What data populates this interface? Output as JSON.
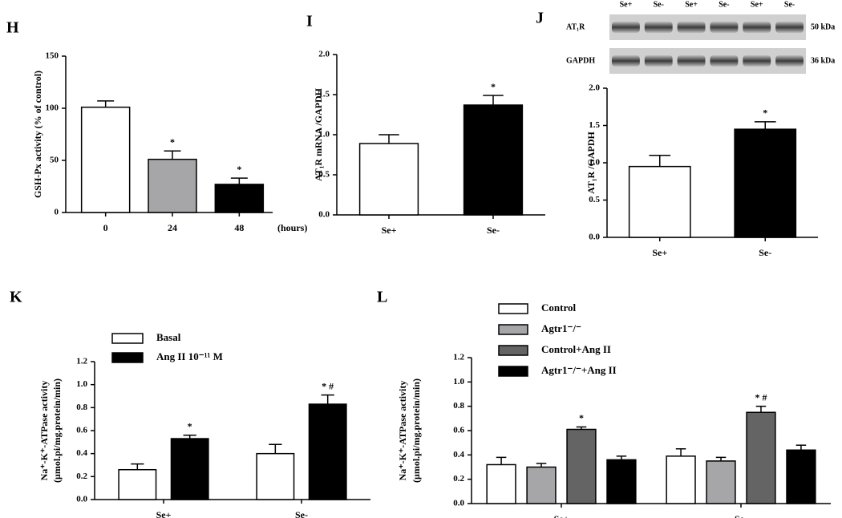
{
  "chart_data": [
    {
      "type": "bar",
      "panel": "H",
      "ylabel": "GSH-Px activity (% of control)",
      "xlabel": "(hours)",
      "categories": [
        "0",
        "24",
        "48"
      ],
      "values": [
        101,
        51,
        27
      ],
      "error": [
        6,
        8,
        6
      ],
      "colors": [
        "#ffffff",
        "#a6a6a8",
        "#000000"
      ],
      "annotations": [
        null,
        "*",
        "*"
      ],
      "ylim": [
        0,
        150
      ],
      "yticks": [
        0,
        50,
        100,
        150
      ]
    },
    {
      "type": "bar",
      "panel": "I",
      "ylabel": "AT₁R mRNA /GAPDH",
      "categories": [
        "Se+",
        "Se-"
      ],
      "values": [
        0.89,
        1.37
      ],
      "error": [
        0.11,
        0.12
      ],
      "colors": [
        "#ffffff",
        "#000000"
      ],
      "annotations": [
        null,
        "*"
      ],
      "ylim": [
        0,
        2
      ],
      "yticks": [
        {
          "value": 0,
          "label": "0.0"
        },
        {
          "value": 0.5,
          "label": "0.5"
        },
        {
          "value": 1,
          "label": "1.0"
        },
        {
          "value": 1.5,
          "label": "1.5"
        },
        {
          "value": 2,
          "label": "2.0"
        }
      ]
    },
    {
      "type": "bar",
      "panel": "J",
      "ylabel": "AT₁R /GAPDH",
      "blot": {
        "lanes": [
          "Se+",
          "Se-",
          "Se+",
          "Se-",
          "Se+",
          "Se-"
        ],
        "rows": [
          {
            "label": "AT₁R",
            "size": "50 kDa"
          },
          {
            "label": "GAPDH",
            "size": "36 kDa"
          }
        ]
      },
      "categories": [
        "Se+",
        "Se-"
      ],
      "values": [
        0.95,
        1.45
      ],
      "error": [
        0.15,
        0.1
      ],
      "colors": [
        "#ffffff",
        "#000000"
      ],
      "annotations": [
        null,
        "*"
      ],
      "ylim": [
        0,
        2
      ],
      "yticks": [
        {
          "value": 0,
          "label": "0.0"
        },
        {
          "value": 0.5,
          "label": "0.5"
        },
        {
          "value": 1,
          "label": "1.0"
        },
        {
          "value": 1.5,
          "label": "1.5"
        },
        {
          "value": 2,
          "label": "2.0"
        }
      ]
    },
    {
      "type": "grouped-bar",
      "panel": "K",
      "ylabel": [
        "Na⁺-K⁺-ATPase activity",
        "(μmol.pi/mg.protein/min)"
      ],
      "categories": [
        "Se+",
        "Se-"
      ],
      "series": [
        {
          "name": "Basal",
          "color": "#ffffff",
          "values": [
            0.26,
            0.4
          ],
          "error": [
            0.05,
            0.08
          ],
          "annotations": [
            null,
            null
          ]
        },
        {
          "name": "Ang II 10⁻¹¹ M",
          "color": "#000000",
          "values": [
            0.53,
            0.83
          ],
          "error": [
            0.03,
            0.08
          ],
          "annotations": [
            "*",
            "* #"
          ]
        }
      ],
      "ylim": [
        0,
        1.2
      ],
      "yticks": [
        {
          "value": 0,
          "label": "0.0"
        },
        {
          "value": 0.2,
          "label": "0.2"
        },
        {
          "value": 0.4,
          "label": "0.4"
        },
        {
          "value": 0.6,
          "label": "0.6"
        },
        {
          "value": 0.8,
          "label": "0.8"
        },
        {
          "value": 1,
          "label": "1.0"
        },
        {
          "value": 1.2,
          "label": "1.2"
        }
      ]
    },
    {
      "type": "grouped-bar",
      "panel": "L",
      "ylabel": [
        "Na⁺-K⁺-ATPase activity",
        "(μmol.pi/mg.protein/min)"
      ],
      "categories": [
        "Se+",
        "Se-"
      ],
      "series": [
        {
          "name": "Control",
          "color": "#ffffff",
          "values": [
            0.32,
            0.39
          ],
          "error": [
            0.06,
            0.06
          ],
          "annotations": [
            null,
            null
          ]
        },
        {
          "name": "Agtr1⁻/⁻",
          "color": "#a6a6a8",
          "values": [
            0.3,
            0.35
          ],
          "error": [
            0.03,
            0.03
          ],
          "annotations": [
            null,
            null
          ]
        },
        {
          "name": "Control+Ang II",
          "color": "#646464",
          "values": [
            0.61,
            0.75
          ],
          "error": [
            0.02,
            0.05
          ],
          "annotations": [
            "*",
            "* #"
          ]
        },
        {
          "name": "Agtr1⁻/⁻+Ang II",
          "color": "#000000",
          "values": [
            0.36,
            0.44
          ],
          "error": [
            0.03,
            0.04
          ],
          "annotations": [
            null,
            null
          ]
        }
      ],
      "ylim": [
        0,
        1.2
      ],
      "yticks": [
        {
          "value": 0,
          "label": "0.0"
        },
        {
          "value": 0.2,
          "label": "0.2"
        },
        {
          "value": 0.4,
          "label": "0.4"
        },
        {
          "value": 0.6,
          "label": "0.6"
        },
        {
          "value": 0.8,
          "label": "0.8"
        },
        {
          "value": 1,
          "label": "1.0"
        },
        {
          "value": 1.2,
          "label": "1.2"
        }
      ]
    }
  ]
}
